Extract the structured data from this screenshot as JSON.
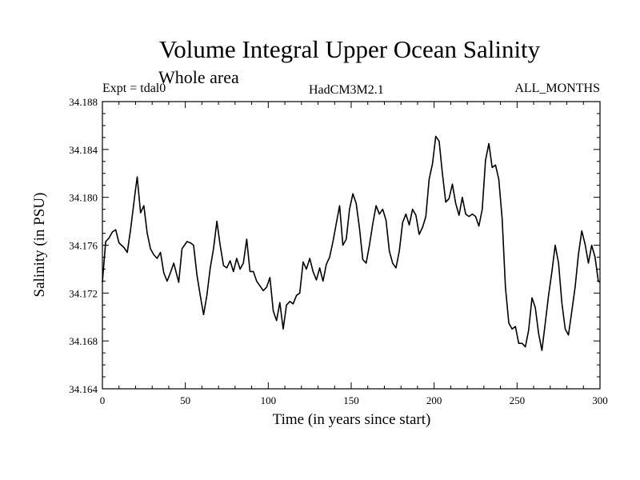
{
  "chart_data": {
    "type": "line",
    "title": "Volume Integral Upper Ocean Salinity",
    "subtitle": "Whole area",
    "expt_label": "Expt = tdal0",
    "model_label": "HadCM3M2.1",
    "months_label": "ALL_MONTHS",
    "xlabel": "Time (in years since start)",
    "ylabel": "Salinity (in PSU)",
    "xlim": [
      0,
      300
    ],
    "ylim": [
      34.164,
      34.188
    ],
    "xticks": [
      0,
      50,
      100,
      150,
      200,
      250,
      300
    ],
    "yticks": [
      34.164,
      34.168,
      34.172,
      34.176,
      34.18,
      34.184,
      34.188
    ],
    "ytick_labels": [
      "34.164",
      "34.168",
      "34.172",
      "34.176",
      "34.180",
      "34.184",
      "34.188"
    ],
    "series": [
      {
        "name": "salinity",
        "x": [
          0,
          2,
          4,
          6,
          8,
          10,
          13,
          15,
          17,
          20,
          21,
          23,
          25,
          27,
          29,
          31,
          33,
          35,
          37,
          39,
          41,
          43,
          46,
          48,
          51,
          53,
          55,
          57,
          59,
          61,
          63,
          65,
          67,
          69,
          71,
          73,
          75,
          77,
          79,
          81,
          83,
          85,
          87,
          89,
          91,
          93,
          95,
          97,
          99,
          101,
          103,
          105,
          107,
          109,
          111,
          113,
          115,
          117,
          119,
          121,
          123,
          125,
          127,
          129,
          131,
          133,
          135,
          137,
          139,
          141,
          143,
          145,
          147,
          149,
          151,
          153,
          155,
          157,
          159,
          161,
          163,
          165,
          167,
          169,
          171,
          173,
          175,
          177,
          179,
          181,
          183,
          185,
          187,
          189,
          191,
          193,
          195,
          197,
          199,
          201,
          203,
          205,
          207,
          209,
          211,
          213,
          215,
          217,
          219,
          221,
          223,
          225,
          227,
          229,
          231,
          233,
          235,
          237,
          239,
          241,
          243,
          245,
          247,
          249,
          251,
          253,
          255,
          257,
          259,
          261,
          263,
          265,
          267,
          269,
          271,
          273,
          275,
          277,
          279,
          281,
          283,
          285,
          287,
          289,
          291,
          293,
          295,
          297,
          299,
          300
        ],
        "values": [
          34.1729,
          34.1763,
          34.1766,
          34.1771,
          34.1773,
          34.1762,
          34.1758,
          34.1754,
          34.1773,
          34.1807,
          34.1817,
          34.1787,
          34.1793,
          34.177,
          34.1757,
          34.1752,
          34.1749,
          34.1754,
          34.1737,
          34.173,
          34.1737,
          34.1745,
          34.1729,
          34.1757,
          34.1763,
          34.1762,
          34.176,
          34.1735,
          34.1718,
          34.1702,
          34.1718,
          34.1741,
          34.1757,
          34.178,
          34.176,
          34.1743,
          34.1741,
          34.1747,
          34.1738,
          34.1749,
          34.174,
          34.1745,
          34.1765,
          34.1738,
          34.1738,
          34.173,
          34.1726,
          34.1722,
          34.1725,
          34.1733,
          34.1705,
          34.1697,
          34.1712,
          34.169,
          34.171,
          34.1713,
          34.1711,
          34.1718,
          34.172,
          34.1746,
          34.174,
          34.1749,
          34.1738,
          34.1731,
          34.1741,
          34.173,
          34.1744,
          34.175,
          34.1763,
          34.1778,
          34.1793,
          34.176,
          34.1765,
          34.179,
          34.1803,
          34.1795,
          34.1774,
          34.1748,
          34.1745,
          34.176,
          34.1778,
          34.1793,
          34.1786,
          34.179,
          34.1781,
          34.1755,
          34.1745,
          34.1741,
          34.1755,
          34.1779,
          34.1786,
          34.1777,
          34.179,
          34.1785,
          34.1769,
          34.1775,
          34.1784,
          34.1815,
          34.1828,
          34.1851,
          34.1847,
          34.182,
          34.1796,
          34.1799,
          34.1811,
          34.1795,
          34.1785,
          34.18,
          34.1786,
          34.1784,
          34.1786,
          34.1784,
          34.1776,
          34.179,
          34.1831,
          34.1845,
          34.1825,
          34.1827,
          34.1815,
          34.1782,
          34.1725,
          34.1695,
          34.169,
          34.1692,
          34.1678,
          34.1678,
          34.1675,
          34.1689,
          34.1716,
          34.1708,
          34.1686,
          34.1672,
          34.1695,
          34.1718,
          34.1738,
          34.176,
          34.1745,
          34.1712,
          34.169,
          34.1685,
          34.1705,
          34.1725,
          34.1752,
          34.1772,
          34.1761,
          34.1745,
          34.176,
          34.175,
          34.173,
          34.1729
        ]
      }
    ]
  }
}
